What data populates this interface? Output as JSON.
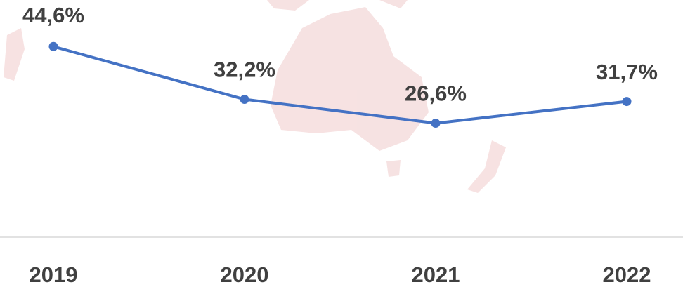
{
  "chart_data": {
    "type": "line",
    "categories": [
      "2019",
      "2020",
      "2021",
      "2022"
    ],
    "values": [
      44.6,
      32.2,
      26.6,
      31.7
    ],
    "value_labels": [
      "44,6%",
      "32,2%",
      "26,6%",
      "31,7%"
    ],
    "color": "#4472c4"
  }
}
